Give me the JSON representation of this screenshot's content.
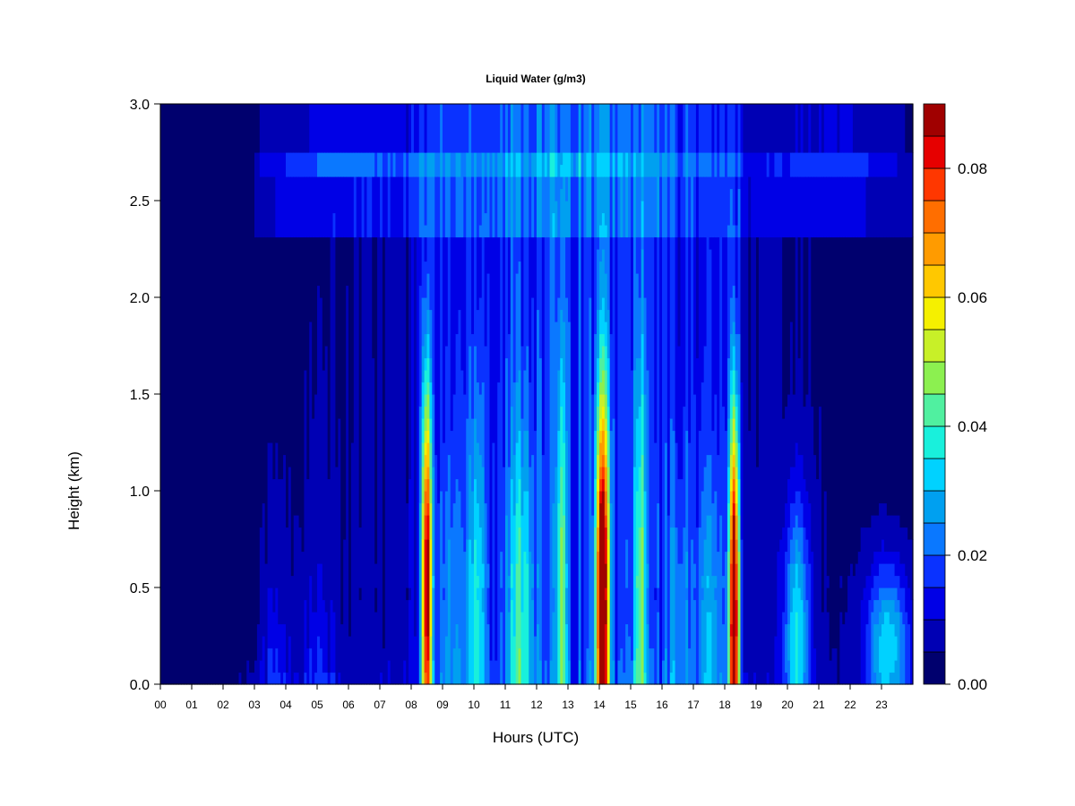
{
  "chart_data": {
    "type": "heatmap",
    "title": "Liquid Water (g/m3)",
    "xlabel": "Hours (UTC)",
    "ylabel": "Height (km)",
    "x_ticks": [
      "00",
      "01",
      "02",
      "03",
      "04",
      "05",
      "06",
      "07",
      "08",
      "09",
      "10",
      "11",
      "12",
      "13",
      "14",
      "15",
      "16",
      "17",
      "18",
      "19",
      "20",
      "21",
      "22",
      "23"
    ],
    "xlim": [
      0,
      24
    ],
    "y_ticks": [
      "0.0",
      "0.5",
      "1.0",
      "1.5",
      "2.0",
      "2.5",
      "3.0"
    ],
    "ylim": [
      0,
      3.0
    ],
    "colorbar": {
      "ticks": [
        "0.00",
        "0.02",
        "0.04",
        "0.06",
        "0.08"
      ],
      "range": [
        0,
        0.09
      ],
      "levels": [
        0,
        0.005,
        0.01,
        0.015,
        0.02,
        0.025,
        0.03,
        0.035,
        0.04,
        0.045,
        0.05,
        0.055,
        0.06,
        0.065,
        0.07,
        0.075,
        0.08,
        0.085,
        0.09
      ],
      "colors": [
        "#00006e",
        "#0000b4",
        "#0000e6",
        "#0a32ff",
        "#0a78ff",
        "#00a0f0",
        "#00d2ff",
        "#19f0dc",
        "#50f0a0",
        "#8cf050",
        "#c8f028",
        "#f5f000",
        "#ffc800",
        "#ff9b00",
        "#ff6e00",
        "#ff3700",
        "#e60000",
        "#a00000"
      ]
    },
    "features": [
      {
        "hour": 8.5,
        "peak": 0.085,
        "note": "strong convective column"
      },
      {
        "hour": 14.1,
        "peak": 0.085,
        "note": "strong convective column"
      },
      {
        "hour": 18.3,
        "peak": 0.09,
        "note": "strong convective column"
      },
      {
        "hour": 12.8,
        "peak": 0.045,
        "note": "moderate column"
      },
      {
        "hour": 20.3,
        "peak": 0.04,
        "note": "moderate low-level"
      },
      {
        "hour": 23.2,
        "peak": 0.04,
        "note": "low-level"
      },
      {
        "hour": 3.6,
        "peak": 0.035,
        "note": "low-level"
      }
    ]
  }
}
